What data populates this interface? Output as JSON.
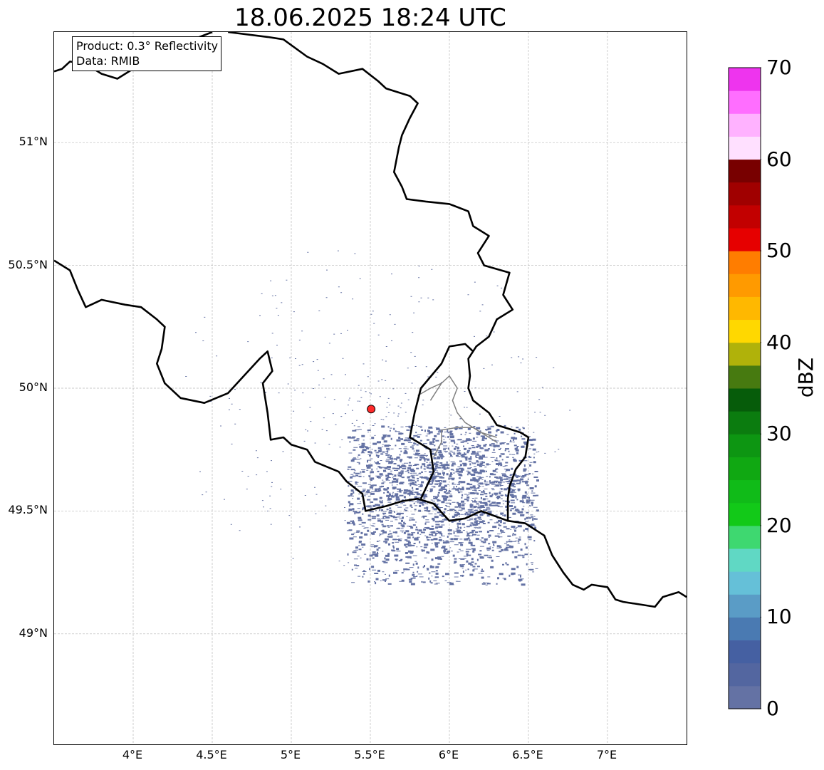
{
  "title": "18.06.2025 18:24 UTC",
  "info": {
    "product": "Product: 0.3° Reflectivity",
    "source": "Data: RMIB"
  },
  "map": {
    "lon_range": [
      3.5,
      7.5
    ],
    "lat_range": [
      48.55,
      51.45
    ],
    "grid": true,
    "lat_ticks": [
      {
        "value": 51.0,
        "label": "51°N"
      },
      {
        "value": 50.5,
        "label": "50.5°N"
      },
      {
        "value": 50.0,
        "label": "50°N"
      },
      {
        "value": 49.5,
        "label": "49.5°N"
      },
      {
        "value": 49.0,
        "label": "49°N"
      }
    ],
    "lon_ticks": [
      {
        "value": 4.0,
        "label": "4°E"
      },
      {
        "value": 4.5,
        "label": "4.5°E"
      },
      {
        "value": 5.0,
        "label": "5°E"
      },
      {
        "value": 5.5,
        "label": "5.5°E"
      },
      {
        "value": 6.0,
        "label": "6°E"
      },
      {
        "value": 6.5,
        "label": "6.5°E"
      },
      {
        "value": 7.0,
        "label": "7°E"
      }
    ],
    "radar_site": {
      "lon": 5.505,
      "lat": 49.915,
      "color": "#ff2a2a"
    },
    "echo_color": "#6472a4",
    "border_color": "#000000",
    "region_border_color": "#808080",
    "borders": {
      "nl_be": [
        [
          3.5,
          51.29
        ],
        [
          3.55,
          51.3
        ],
        [
          3.6,
          51.33
        ],
        [
          3.7,
          51.32
        ],
        [
          3.8,
          51.28
        ],
        [
          3.9,
          51.26
        ],
        [
          4.0,
          51.3
        ],
        [
          4.1,
          51.32
        ],
        [
          4.2,
          51.37
        ],
        [
          4.3,
          51.4
        ],
        [
          4.5,
          51.45
        ]
      ],
      "be_lu_de": [
        [
          4.6,
          51.45
        ],
        [
          4.85,
          51.43
        ],
        [
          4.95,
          51.42
        ],
        [
          5.1,
          51.35
        ],
        [
          5.2,
          51.32
        ],
        [
          5.3,
          51.28
        ],
        [
          5.45,
          51.3
        ],
        [
          5.55,
          51.25
        ],
        [
          5.6,
          51.22
        ],
        [
          5.75,
          51.19
        ],
        [
          5.8,
          51.16
        ],
        [
          5.75,
          51.1
        ],
        [
          5.7,
          51.03
        ],
        [
          5.68,
          50.98
        ],
        [
          5.65,
          50.88
        ],
        [
          5.7,
          50.82
        ],
        [
          5.73,
          50.77
        ],
        [
          5.85,
          50.76
        ],
        [
          6.0,
          50.75
        ],
        [
          6.12,
          50.72
        ],
        [
          6.15,
          50.66
        ],
        [
          6.25,
          50.62
        ],
        [
          6.18,
          50.55
        ],
        [
          6.22,
          50.5
        ],
        [
          6.38,
          50.47
        ],
        [
          6.34,
          50.38
        ],
        [
          6.4,
          50.32
        ],
        [
          6.3,
          50.28
        ],
        [
          6.25,
          50.21
        ],
        [
          6.17,
          50.17
        ],
        [
          6.12,
          50.12
        ],
        [
          6.13,
          50.05
        ],
        [
          6.12,
          50.0
        ],
        [
          6.15,
          49.95
        ],
        [
          6.25,
          49.9
        ],
        [
          6.3,
          49.85
        ],
        [
          6.45,
          49.82
        ],
        [
          6.5,
          49.8
        ],
        [
          6.48,
          49.72
        ],
        [
          6.42,
          49.67
        ],
        [
          6.38,
          49.6
        ],
        [
          6.37,
          49.55
        ],
        [
          6.37,
          49.46
        ],
        [
          6.48,
          49.45
        ],
        [
          6.6,
          49.4
        ],
        [
          6.65,
          49.32
        ],
        [
          6.72,
          49.25
        ],
        [
          6.78,
          49.2
        ],
        [
          6.85,
          49.18
        ],
        [
          6.9,
          49.2
        ],
        [
          7.0,
          49.19
        ],
        [
          7.05,
          49.14
        ],
        [
          7.1,
          49.13
        ],
        [
          7.2,
          49.12
        ],
        [
          7.3,
          49.11
        ],
        [
          7.35,
          49.15
        ],
        [
          7.45,
          49.17
        ],
        [
          7.5,
          49.15
        ]
      ],
      "be_fr": [
        [
          3.5,
          50.52
        ],
        [
          3.6,
          50.48
        ],
        [
          3.65,
          50.4
        ],
        [
          3.7,
          50.33
        ],
        [
          3.8,
          50.36
        ],
        [
          3.95,
          50.34
        ],
        [
          4.05,
          50.33
        ],
        [
          4.15,
          50.28
        ],
        [
          4.2,
          50.25
        ],
        [
          4.18,
          50.16
        ],
        [
          4.15,
          50.1
        ],
        [
          4.2,
          50.02
        ],
        [
          4.3,
          49.96
        ],
        [
          4.45,
          49.94
        ],
        [
          4.6,
          49.98
        ],
        [
          4.7,
          50.05
        ],
        [
          4.8,
          50.12
        ],
        [
          4.85,
          50.15
        ],
        [
          4.88,
          50.07
        ],
        [
          4.82,
          50.02
        ],
        [
          4.85,
          49.9
        ],
        [
          4.87,
          49.79
        ],
        [
          4.95,
          49.8
        ],
        [
          5.0,
          49.77
        ],
        [
          5.1,
          49.75
        ],
        [
          5.15,
          49.7
        ],
        [
          5.3,
          49.66
        ],
        [
          5.35,
          49.62
        ],
        [
          5.45,
          49.57
        ],
        [
          5.47,
          49.5
        ],
        [
          5.6,
          49.52
        ],
        [
          5.7,
          49.54
        ],
        [
          5.8,
          49.55
        ],
        [
          5.9,
          49.53
        ],
        [
          6.0,
          49.46
        ],
        [
          6.1,
          49.47
        ],
        [
          6.2,
          49.5
        ],
        [
          6.37,
          49.46
        ]
      ],
      "lu": [
        [
          5.82,
          49.55
        ],
        [
          5.9,
          49.66
        ],
        [
          5.88,
          49.75
        ],
        [
          5.75,
          49.8
        ],
        [
          5.78,
          49.9
        ],
        [
          5.82,
          50.0
        ],
        [
          5.95,
          50.1
        ],
        [
          6.0,
          50.17
        ],
        [
          6.1,
          50.18
        ],
        [
          6.15,
          50.15
        ]
      ]
    },
    "region_borders": [
      [
        [
          5.88,
          49.95
        ],
        [
          5.95,
          50.02
        ],
        [
          6.0,
          50.05
        ],
        [
          6.05,
          50.0
        ],
        [
          6.02,
          49.95
        ],
        [
          6.05,
          49.9
        ],
        [
          6.1,
          49.86
        ],
        [
          6.2,
          49.82
        ],
        [
          6.3,
          49.8
        ]
      ],
      [
        [
          5.95,
          50.02
        ],
        [
          5.88,
          50.0
        ],
        [
          5.8,
          49.97
        ]
      ],
      [
        [
          5.95,
          49.83
        ],
        [
          6.05,
          49.84
        ],
        [
          6.15,
          49.84
        ],
        [
          6.25,
          49.8
        ],
        [
          6.3,
          49.78
        ]
      ],
      [
        [
          5.95,
          49.83
        ],
        [
          5.95,
          49.78
        ],
        [
          5.9,
          49.72
        ]
      ]
    ]
  },
  "colorbar": {
    "unit": "dBZ",
    "min": 0,
    "max": 70,
    "step": 2.5,
    "colors": [
      "#6472a4",
      "#5366a0",
      "#4560a2",
      "#4a7ab2",
      "#5a9cc6",
      "#65c0d8",
      "#60d8c4",
      "#3ed870",
      "#12c918",
      "#10bb18",
      "#10a812",
      "#0d9612",
      "#0b7c0f",
      "#065c0a",
      "#477a10",
      "#b0b20a",
      "#ffd800",
      "#ffb800",
      "#ff9a00",
      "#ff7d00",
      "#e60000",
      "#c20000",
      "#a00000",
      "#780000",
      "#ffe0ff",
      "#ffb2ff",
      "#ff6eff",
      "#ee34ee"
    ],
    "ticks": [
      0,
      10,
      20,
      30,
      40,
      50,
      60,
      70
    ]
  }
}
